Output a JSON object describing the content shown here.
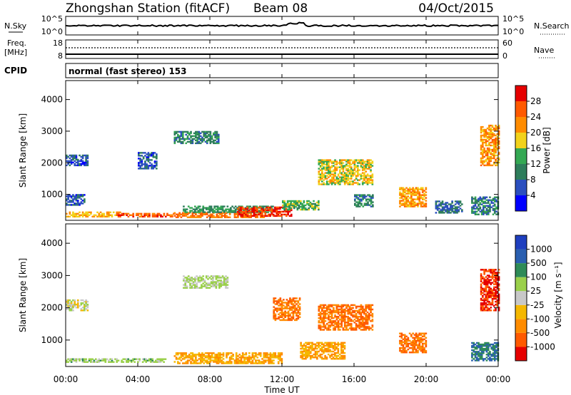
{
  "header": {
    "title": "Zhongshan Station (fitACF)",
    "beam": "Beam 08",
    "date": "04/Oct/2015"
  },
  "noise_panel": {
    "left_label": "N.Sky",
    "right_label": "N.Search",
    "left_ticks": [
      "10^5",
      "10^0"
    ],
    "right_ticks": [
      "10^5",
      "10^0"
    ]
  },
  "freq_panel": {
    "left_label_1": "Freq.",
    "left_label_2": "[MHz]",
    "right_label": "Nave",
    "left_ticks": [
      "18",
      "8"
    ],
    "right_ticks": [
      "60",
      "0"
    ]
  },
  "cpid_panel": {
    "label": "CPID",
    "text": "normal (fast stereo) 153"
  },
  "x_axis": {
    "label": "Time UT",
    "ticks": [
      "00:00",
      "04:00",
      "08:00",
      "12:00",
      "16:00",
      "20:00",
      "00:00"
    ]
  },
  "colors": {
    "power_scale": [
      "#0000ff",
      "#2b4fbf",
      "#2e7d5b",
      "#34a853",
      "#f2d21b",
      "#ff8c00",
      "#ff5a00",
      "#e60000"
    ],
    "velocity_scale": [
      "#e60000",
      "#ff5a00",
      "#ff8c00",
      "#f5b800",
      "#c8c8c8",
      "#9ad04a",
      "#2e8b57",
      "#2a5fb0",
      "#1f3fbf"
    ]
  },
  "chart_data": [
    {
      "type": "heatmap",
      "panel": "power",
      "ylabel": "Slant Range [km]",
      "yticks": [
        "1000",
        "2000",
        "3000",
        "4000"
      ],
      "ylim": [
        180,
        4600
      ],
      "xlim_hours": [
        0,
        24
      ],
      "colorbar": {
        "label": "Power [dB]",
        "ticks": [
          "4",
          "8",
          "12",
          "16",
          "20",
          "24",
          "28"
        ],
        "range": [
          0,
          32
        ]
      },
      "patches": [
        {
          "t": [
            0.0,
            1.2
          ],
          "r": [
            1900,
            2250
          ],
          "v": 7
        },
        {
          "t": [
            0.0,
            1.0
          ],
          "r": [
            650,
            1000
          ],
          "v": 7
        },
        {
          "t": [
            0.0,
            3.0
          ],
          "r": [
            280,
            420
          ],
          "v": 20
        },
        {
          "t": [
            2.8,
            6.0
          ],
          "r": [
            280,
            400
          ],
          "v": 26
        },
        {
          "t": [
            6.0,
            11.0
          ],
          "r": [
            260,
            420
          ],
          "v": 24
        },
        {
          "t": [
            6.5,
            11.5
          ],
          "r": [
            420,
            620
          ],
          "v": 12
        },
        {
          "t": [
            9.5,
            12.5
          ],
          "r": [
            300,
            600
          ],
          "v": 28
        },
        {
          "t": [
            12.0,
            14.0
          ],
          "r": [
            500,
            800
          ],
          "v": 14
        },
        {
          "t": [
            6.0,
            8.5
          ],
          "r": [
            2600,
            3000
          ],
          "v": 10
        },
        {
          "t": [
            4.0,
            5.0
          ],
          "r": [
            1800,
            2300
          ],
          "v": 7
        },
        {
          "t": [
            14.0,
            17.0
          ],
          "r": [
            1300,
            2100
          ],
          "v": 18
        },
        {
          "t": [
            16.0,
            17.0
          ],
          "r": [
            600,
            1000
          ],
          "v": 10
        },
        {
          "t": [
            18.5,
            20.0
          ],
          "r": [
            600,
            1200
          ],
          "v": 22
        },
        {
          "t": [
            20.5,
            22.0
          ],
          "r": [
            400,
            800
          ],
          "v": 8
        },
        {
          "t": [
            22.5,
            24.0
          ],
          "r": [
            350,
            900
          ],
          "v": 10
        },
        {
          "t": [
            23.0,
            24.0
          ],
          "r": [
            1900,
            3200
          ],
          "v": 22
        }
      ]
    },
    {
      "type": "heatmap",
      "panel": "velocity",
      "ylabel": "Slant Range [km]",
      "yticks": [
        "1000",
        "2000",
        "3000",
        "4000"
      ],
      "ylim": [
        180,
        4600
      ],
      "xlim_hours": [
        0,
        24
      ],
      "colorbar": {
        "label": "Velocity [m s⁻¹]",
        "ticks": [
          "-1000",
          "-500",
          "-100",
          "-25",
          "25",
          "100",
          "500",
          "1000"
        ]
      },
      "patches": [
        {
          "t": [
            0.0,
            1.2
          ],
          "r": [
            1900,
            2250
          ],
          "v": 0
        },
        {
          "t": [
            0.0,
            5.5
          ],
          "r": [
            300,
            420
          ],
          "v": 60
        },
        {
          "t": [
            6.0,
            12.0
          ],
          "r": [
            260,
            600
          ],
          "v": -100
        },
        {
          "t": [
            6.5,
            9.0
          ],
          "r": [
            2600,
            3000
          ],
          "v": 40
        },
        {
          "t": [
            11.5,
            13.0
          ],
          "r": [
            1600,
            2300
          ],
          "v": -500
        },
        {
          "t": [
            14.0,
            17.0
          ],
          "r": [
            1300,
            2100
          ],
          "v": -500
        },
        {
          "t": [
            13.0,
            15.5
          ],
          "r": [
            400,
            900
          ],
          "v": -100
        },
        {
          "t": [
            18.5,
            20.0
          ],
          "r": [
            600,
            1200
          ],
          "v": -500
        },
        {
          "t": [
            22.5,
            24.0
          ],
          "r": [
            350,
            900
          ],
          "v": 500
        },
        {
          "t": [
            23.0,
            24.0
          ],
          "r": [
            1900,
            3200
          ],
          "v": -1000
        }
      ]
    }
  ]
}
